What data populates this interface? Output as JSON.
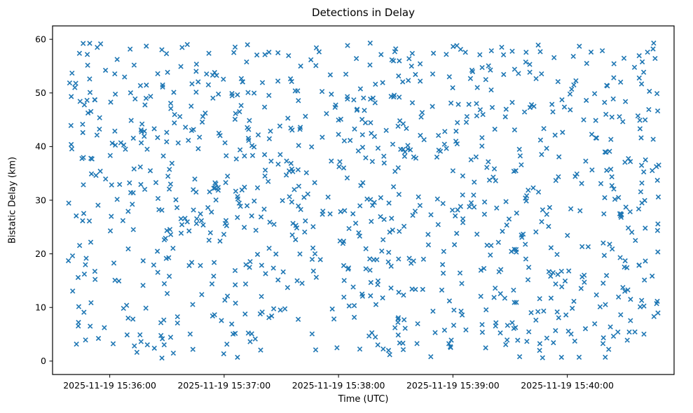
{
  "figure": {
    "title": "Detections in Delay",
    "xlabel": "Time (UTC)",
    "ylabel": "Bistatic Delay (km)"
  },
  "chart_data": {
    "type": "scatter",
    "title": "Detections in Delay",
    "xlabel": "Time (UTC)",
    "ylabel": "Bistatic Delay (km)",
    "grid": false,
    "legend": "none",
    "x_axis": {
      "type": "time",
      "tick_labels": [
        "2025-11-19 15:36:00",
        "2025-11-19 15:37:00",
        "2025-11-19 15:38:00",
        "2025-11-19 15:39:00",
        "2025-11-19 15:40:00"
      ],
      "tick_seconds_from_1536": [
        0,
        60,
        120,
        180,
        240
      ],
      "range_seconds": [
        -30,
        296
      ]
    },
    "y_axis": {
      "ticks": [
        0,
        10,
        20,
        30,
        40,
        50,
        60
      ],
      "range": [
        -2.5,
        62.5
      ]
    },
    "series": [
      {
        "name": "detections",
        "marker": "x",
        "color": "#1f77b4",
        "point_count": 1000,
        "distribution": "uniform-random",
        "x_range_seconds": [
          -22,
          288
        ],
        "y_range_km": [
          0.5,
          59.5
        ],
        "prng_seed": 20251119
      }
    ]
  }
}
